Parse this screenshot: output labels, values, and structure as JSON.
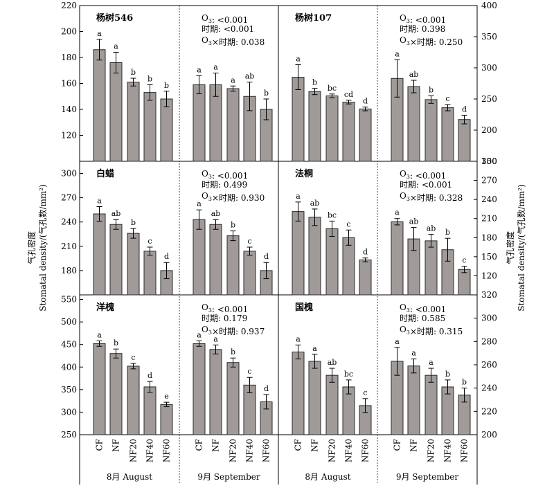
{
  "figure": {
    "left_axis_title": [
      "气孔密度",
      "Stomatal density/(气孔数/mm²)"
    ],
    "right_axis_title": [
      "气孔密度",
      "Stomatal density/(气孔数/mm²)"
    ],
    "month_labels": [
      "8月  August",
      "9月  September",
      "8月  August",
      "9月  September"
    ]
  },
  "chart_data": [
    {
      "type": "bar",
      "group": "杨树546",
      "month": "8月 August",
      "plant_label": "杨树546",
      "stats": [],
      "categories": [
        "CF",
        "NF",
        "NF20",
        "NF40",
        "NF60"
      ],
      "values": [
        186,
        176,
        161,
        153,
        148
      ],
      "errors": [
        8,
        8,
        3,
        6,
        6
      ],
      "letters": [
        "a",
        "a",
        "b",
        "b",
        "b"
      ],
      "ylim": [
        100,
        220
      ],
      "yticks": [
        120,
        140,
        160,
        180,
        200,
        220
      ],
      "axis": "left"
    },
    {
      "type": "bar",
      "group": "杨树546",
      "month": "9月 September",
      "plant_label": "",
      "stats": [
        "O₃: <0.001",
        "时期: <0.001",
        "O₃×时期: 0.038"
      ],
      "categories": [
        "CF",
        "NF",
        "NF20",
        "NF40",
        "NF60"
      ],
      "values": [
        159,
        159,
        156,
        150,
        140
      ],
      "errors": [
        7,
        9,
        2,
        11,
        8
      ],
      "letters": [
        "a",
        "a",
        "a",
        "ab",
        "b"
      ],
      "ylim": [
        100,
        220
      ],
      "yticks": [
        120,
        140,
        160,
        180,
        200,
        220
      ],
      "axis": "left"
    },
    {
      "type": "bar",
      "group": "杨树107",
      "month": "8月 August",
      "plant_label": "杨树107",
      "stats": [],
      "categories": [
        "CF",
        "NF",
        "NF20",
        "NF40",
        "NF60"
      ],
      "values": [
        285,
        262,
        255,
        245,
        234
      ],
      "errors": [
        20,
        5,
        3,
        3,
        3
      ],
      "letters": [
        "a",
        "b",
        "bc",
        "cd",
        "d"
      ],
      "ylim": [
        150,
        400
      ],
      "yticks": [
        150,
        200,
        250,
        300,
        350,
        400
      ],
      "axis": "right"
    },
    {
      "type": "bar",
      "group": "杨树107",
      "month": "9月 September",
      "plant_label": "",
      "stats": [
        "O₃: <0.001",
        "时期: 0.398",
        "O₃×时期: 0.250"
      ],
      "categories": [
        "CF",
        "NF",
        "NF20",
        "NF40",
        "NF60"
      ],
      "values": [
        283,
        270,
        249,
        236,
        217
      ],
      "errors": [
        30,
        10,
        6,
        5,
        7
      ],
      "letters": [
        "a",
        "ab",
        "b",
        "c",
        "d"
      ],
      "ylim": [
        150,
        400
      ],
      "yticks": [
        150,
        200,
        250,
        300,
        350,
        400
      ],
      "axis": "right"
    },
    {
      "type": "bar",
      "group": "白蜡",
      "month": "8月 August",
      "plant_label": "白蜡",
      "stats": [],
      "categories": [
        "CF",
        "NF",
        "NF20",
        "NF40",
        "NF60"
      ],
      "values": [
        250,
        237,
        226,
        204,
        180
      ],
      "errors": [
        9,
        6,
        6,
        5,
        10
      ],
      "letters": [
        "a",
        "ab",
        "b",
        "c",
        "d"
      ],
      "ylim": [
        150,
        315
      ],
      "yticks": [
        180,
        210,
        240,
        270,
        300
      ],
      "axis": "left"
    },
    {
      "type": "bar",
      "group": "白蜡",
      "month": "9月 September",
      "plant_label": "",
      "stats": [
        "O₃: <0.001",
        "时期: 0.499",
        "O₃×时期: 0.930"
      ],
      "categories": [
        "CF",
        "NF",
        "NF20",
        "NF40",
        "NF60"
      ],
      "values": [
        243,
        237,
        223,
        204,
        180
      ],
      "errors": [
        12,
        6,
        6,
        5,
        10
      ],
      "letters": [
        "a",
        "ab",
        "b",
        "c",
        "d"
      ],
      "ylim": [
        150,
        315
      ],
      "yticks": [
        180,
        210,
        240,
        270,
        300
      ],
      "axis": "left"
    },
    {
      "type": "bar",
      "group": "法桐",
      "month": "8月 August",
      "plant_label": "法桐",
      "stats": [],
      "categories": [
        "CF",
        "NF",
        "NF20",
        "NF40",
        "NF60"
      ],
      "values": [
        221,
        212,
        194,
        180,
        145
      ],
      "errors": [
        15,
        13,
        12,
        12,
        3
      ],
      "letters": [
        "a",
        "ab",
        "bc",
        "c",
        "d"
      ],
      "ylim": [
        90,
        300
      ],
      "yticks": [
        120,
        150,
        180,
        210,
        240,
        270,
        300
      ],
      "axis": "right"
    },
    {
      "type": "bar",
      "group": "法桐",
      "month": "9月 September",
      "plant_label": "",
      "stats": [
        "O₃: <0.001",
        "时期: <0.001",
        "O₃×时期: 0.328"
      ],
      "categories": [
        "CF",
        "NF",
        "NF20",
        "NF40",
        "NF60"
      ],
      "values": [
        205,
        178,
        175,
        161,
        130
      ],
      "errors": [
        5,
        18,
        10,
        18,
        5
      ],
      "letters": [
        "a",
        "ab",
        "ab",
        "b",
        "c"
      ],
      "ylim": [
        90,
        300
      ],
      "yticks": [
        120,
        150,
        180,
        210,
        240,
        270,
        300
      ],
      "axis": "right"
    },
    {
      "type": "bar",
      "group": "洋槐",
      "month": "8月 August",
      "plant_label": "洋槐",
      "stats": [],
      "categories": [
        "CF",
        "NF",
        "NF20",
        "NF40",
        "NF60"
      ],
      "values": [
        452,
        430,
        402,
        356,
        317
      ],
      "errors": [
        6,
        10,
        6,
        12,
        5
      ],
      "letters": [
        "a",
        "b",
        "c",
        "d",
        "e"
      ],
      "ylim": [
        250,
        560
      ],
      "yticks": [
        250,
        300,
        350,
        400,
        450,
        500,
        550
      ],
      "axis": "left"
    },
    {
      "type": "bar",
      "group": "洋槐",
      "month": "9月 September",
      "plant_label": "",
      "stats": [
        "O₃: <0.001",
        "时期: 0.179",
        "O₃×时期: 0.937"
      ],
      "categories": [
        "CF",
        "NF",
        "NF20",
        "NF40",
        "NF60"
      ],
      "values": [
        452,
        439,
        410,
        360,
        323
      ],
      "errors": [
        6,
        10,
        10,
        17,
        16
      ],
      "letters": [
        "a",
        "a",
        "b",
        "c",
        "d"
      ],
      "ylim": [
        250,
        560
      ],
      "yticks": [
        250,
        300,
        350,
        400,
        450,
        500,
        550
      ],
      "axis": "left"
    },
    {
      "type": "bar",
      "group": "国槐",
      "month": "8月 August",
      "plant_label": "国槐",
      "stats": [],
      "categories": [
        "CF",
        "NF",
        "NF20",
        "NF40",
        "NF60"
      ],
      "values": [
        271,
        263,
        251,
        241,
        225
      ],
      "errors": [
        6,
        6,
        6,
        6,
        6
      ],
      "letters": [
        "a",
        "a",
        "ab",
        "bc",
        "c"
      ],
      "ylim": [
        200,
        320
      ],
      "yticks": [
        200,
        220,
        240,
        260,
        280,
        300,
        320
      ],
      "axis": "right"
    },
    {
      "type": "bar",
      "group": "国槐",
      "month": "9月 September",
      "plant_label": "",
      "stats": [
        "O₃: <0.001",
        "时期: 0.585",
        "O₃×时期: 0.315"
      ],
      "categories": [
        "CF",
        "NF",
        "NF20",
        "NF40",
        "NF60"
      ],
      "values": [
        263,
        259,
        251,
        241,
        234
      ],
      "errors": [
        12,
        6,
        6,
        6,
        6
      ],
      "letters": [
        "a",
        "a",
        "a",
        "b",
        "b"
      ],
      "ylim": [
        200,
        320
      ],
      "yticks": [
        200,
        220,
        240,
        260,
        280,
        300,
        320
      ],
      "axis": "right"
    }
  ]
}
